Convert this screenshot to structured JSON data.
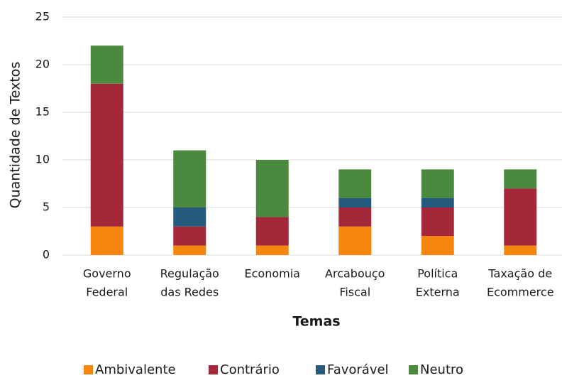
{
  "chart_data": {
    "type": "stacked_bar",
    "xlabel": "Temas",
    "ylabel": "Quantidade de Textos",
    "categories": [
      [
        "Governo",
        "Federal"
      ],
      [
        "Regulação",
        "das Redes"
      ],
      [
        "Economia"
      ],
      [
        "Arcabouço",
        "Fiscal"
      ],
      [
        "Política",
        "Externa"
      ],
      [
        "Taxação de",
        "Ecommerce"
      ]
    ],
    "series": [
      {
        "name": "Ambivalente",
        "color": "#f5870f",
        "values": [
          3,
          1,
          1,
          3,
          2,
          1
        ]
      },
      {
        "name": "Contrário",
        "color": "#a4283a",
        "values": [
          15,
          2,
          3,
          2,
          3,
          6
        ]
      },
      {
        "name": "Favorável",
        "color": "#235a7d",
        "values": [
          0,
          2,
          0,
          1,
          1,
          0
        ]
      },
      {
        "name": "Neutro",
        "color": "#4b8a3e",
        "values": [
          4,
          6,
          6,
          3,
          3,
          2
        ]
      }
    ],
    "ylim": [
      0,
      25
    ],
    "yticks": [
      0,
      5,
      10,
      15,
      20,
      25
    ],
    "grid": true,
    "legend": "bottom"
  }
}
